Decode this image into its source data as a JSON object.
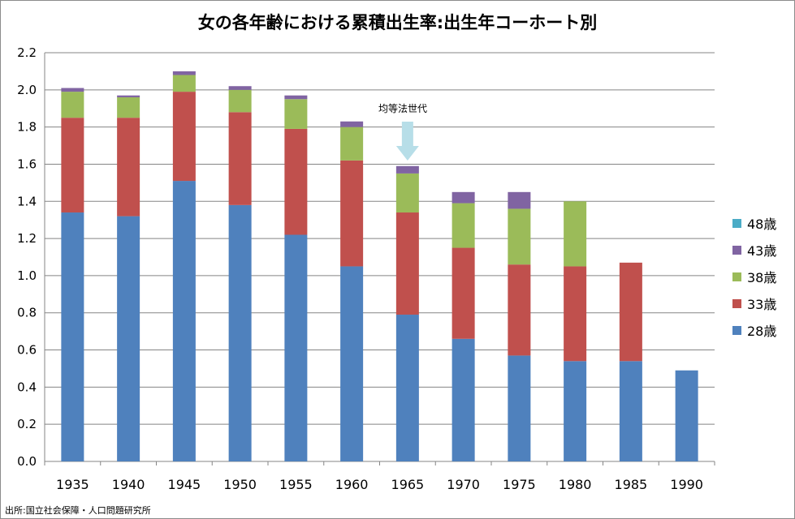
{
  "source": "出所:国立社会保障・人口問題研究所",
  "annotation": {
    "label": "均等法世代",
    "category": "1965"
  },
  "chart_data": {
    "type": "bar",
    "stacked": true,
    "title": "女の各年齢における累積出生率:出生年コーホート別",
    "xlabel": "",
    "ylabel": "",
    "ylim": [
      0,
      2.2
    ],
    "yticks": [
      "0.0",
      "0.2",
      "0.4",
      "0.6",
      "0.8",
      "1.0",
      "1.2",
      "1.4",
      "1.6",
      "1.8",
      "2.0",
      "2.2"
    ],
    "grid": true,
    "legend_position": "right",
    "categories": [
      "1935",
      "1940",
      "1945",
      "1950",
      "1955",
      "1960",
      "1965",
      "1970",
      "1975",
      "1980",
      "1985",
      "1990"
    ],
    "series": [
      {
        "name": "28歳",
        "color": "#4f81bd",
        "values": [
          1.34,
          1.32,
          1.51,
          1.38,
          1.22,
          1.05,
          0.79,
          0.66,
          0.57,
          0.54,
          0.54,
          0.49
        ]
      },
      {
        "name": "33歳",
        "color": "#c0504d",
        "values": [
          0.51,
          0.53,
          0.48,
          0.5,
          0.57,
          0.57,
          0.55,
          0.49,
          0.49,
          0.51,
          0.53,
          null
        ]
      },
      {
        "name": "38歳",
        "color": "#9bbb59",
        "values": [
          0.14,
          0.11,
          0.09,
          0.12,
          0.16,
          0.18,
          0.21,
          0.24,
          0.3,
          0.35,
          null,
          null
        ]
      },
      {
        "name": "43歳",
        "color": "#8064a2",
        "values": [
          0.02,
          0.01,
          0.02,
          0.02,
          0.02,
          0.03,
          0.04,
          0.06,
          0.09,
          null,
          null,
          null
        ]
      },
      {
        "name": "48歳",
        "color": "#4bacc6",
        "values": [
          0.0,
          0.0,
          0.0,
          0.0,
          0.0,
          0.0,
          null,
          null,
          null,
          null,
          null,
          null
        ]
      }
    ]
  }
}
